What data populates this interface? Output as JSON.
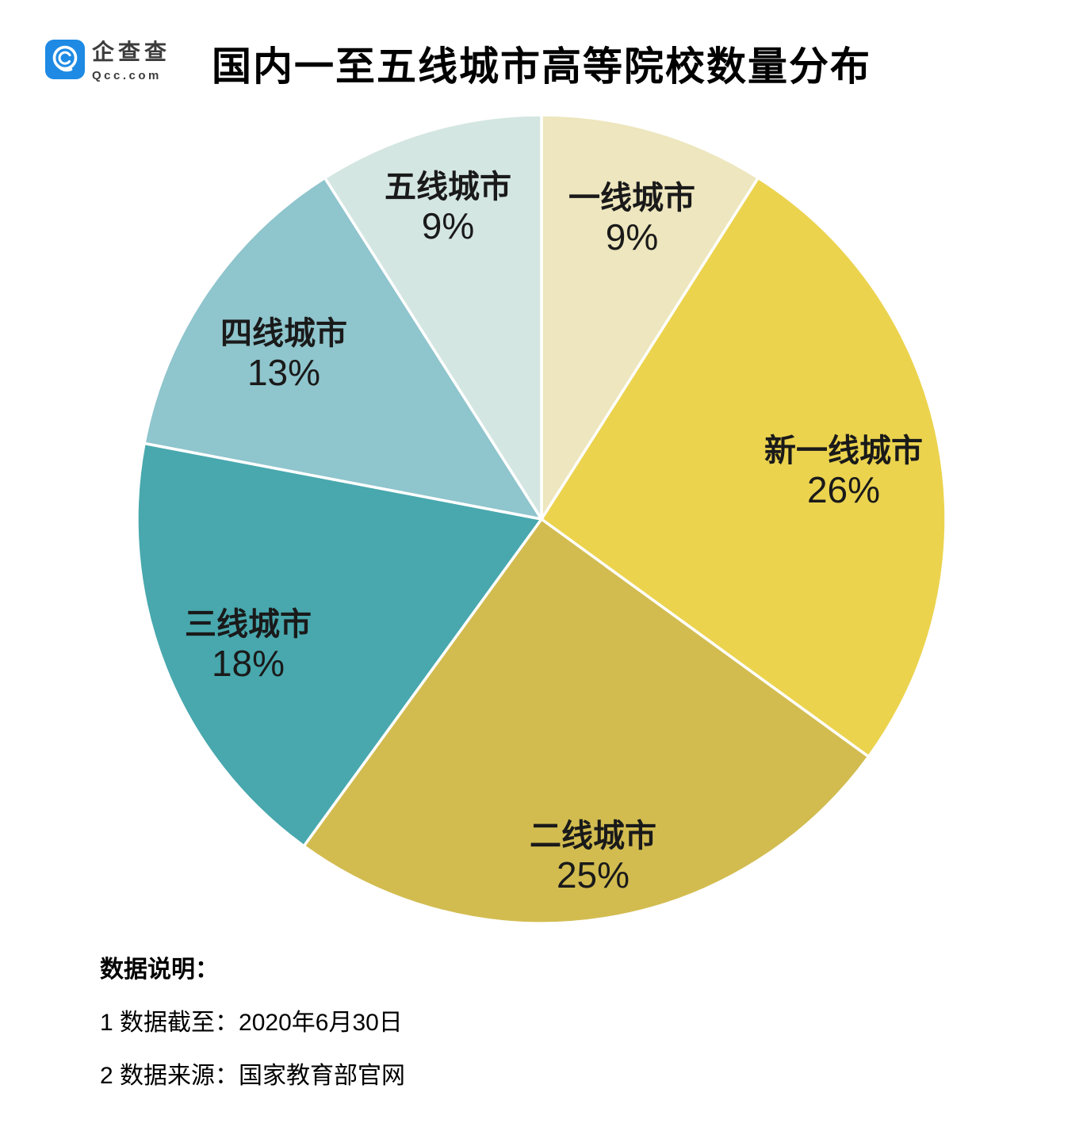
{
  "logo": {
    "name": "企查查",
    "domain": "Qcc.com",
    "brand_color": "#1E8AE4"
  },
  "title": "国内一至五线城市高等院校数量分布",
  "chart_data": {
    "type": "pie",
    "title": "国内一至五线城市高等院校数量分布",
    "start_angle_deg": 0,
    "direction": "clockwise",
    "legend_position": "none",
    "slices": [
      {
        "label": "一线城市",
        "value": 9,
        "display": "9%",
        "color": "#EDE6BE"
      },
      {
        "label": "新一线城市",
        "value": 26,
        "display": "26%",
        "color": "#EBD34E"
      },
      {
        "label": "二线城市",
        "value": 25,
        "display": "25%",
        "color": "#D2BC50"
      },
      {
        "label": "三线城市",
        "value": 18,
        "display": "18%",
        "color": "#48A8AE"
      },
      {
        "label": "四线城市",
        "value": 13,
        "display": "13%",
        "color": "#8FC5CD"
      },
      {
        "label": "五线城市",
        "value": 9,
        "display": "9%",
        "color": "#D4E6E1"
      }
    ]
  },
  "notes": {
    "heading": "数据说明：",
    "line1": "1 数据截至：2020年6月30日",
    "line2": "2 数据来源：国家教育部官网"
  }
}
